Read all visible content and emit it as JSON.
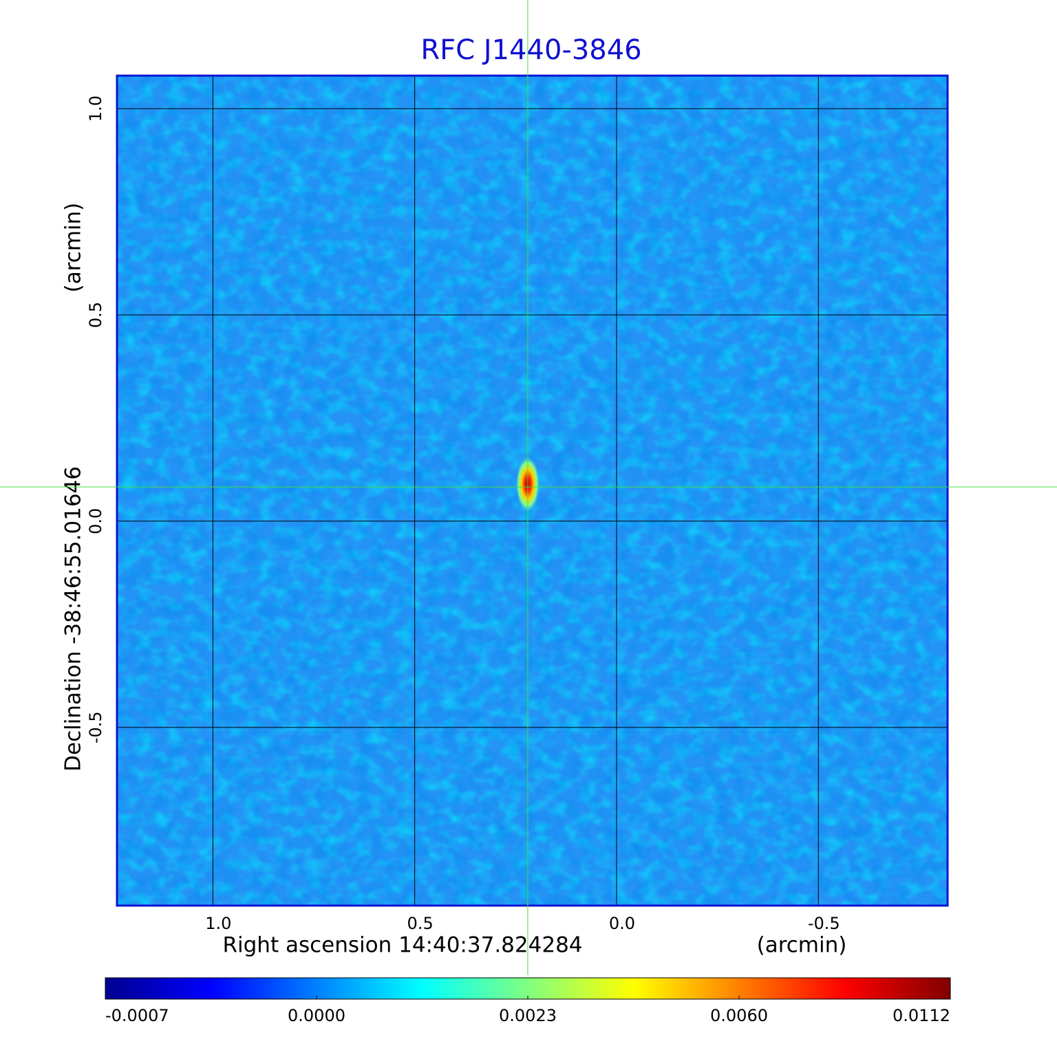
{
  "chart_data": {
    "type": "image",
    "title": "RFC J1440-3846",
    "x_label": "Right ascension  14:40:37.824284",
    "x_unit": "(arcmin)",
    "y_label": "Declination  -38:46:55.01646",
    "y_unit": "(arcmin)",
    "xlim": [
      1.2375,
      -0.82
    ],
    "ylim": [
      -0.932,
      1.08
    ],
    "xticks": [
      {
        "value": 1,
        "label": "1.0"
      },
      0.5,
      {
        "value": 0,
        "label": "0.0"
      },
      -0.5
    ],
    "yticks": [
      -0.5,
      {
        "value": 0,
        "label": "0.0"
      },
      0.5,
      {
        "value": 1,
        "label": "1.0"
      }
    ],
    "grid": true,
    "source": {
      "x": 0.22,
      "y": 0.083
    },
    "colorbar_ticks": [
      -0.0007,
      {
        "value": 0,
        "label": "0.0000"
      },
      0.0023,
      {
        "value": 0.006,
        "label": "0.0060"
      },
      0.0112
    ],
    "colorbar_colors": [
      "#00008f",
      "#0000ff",
      "#0080ff",
      "#00ffff",
      "#80ff80",
      "#ffff00",
      "#ff8000",
      "#ff0000",
      "#800000"
    ]
  }
}
